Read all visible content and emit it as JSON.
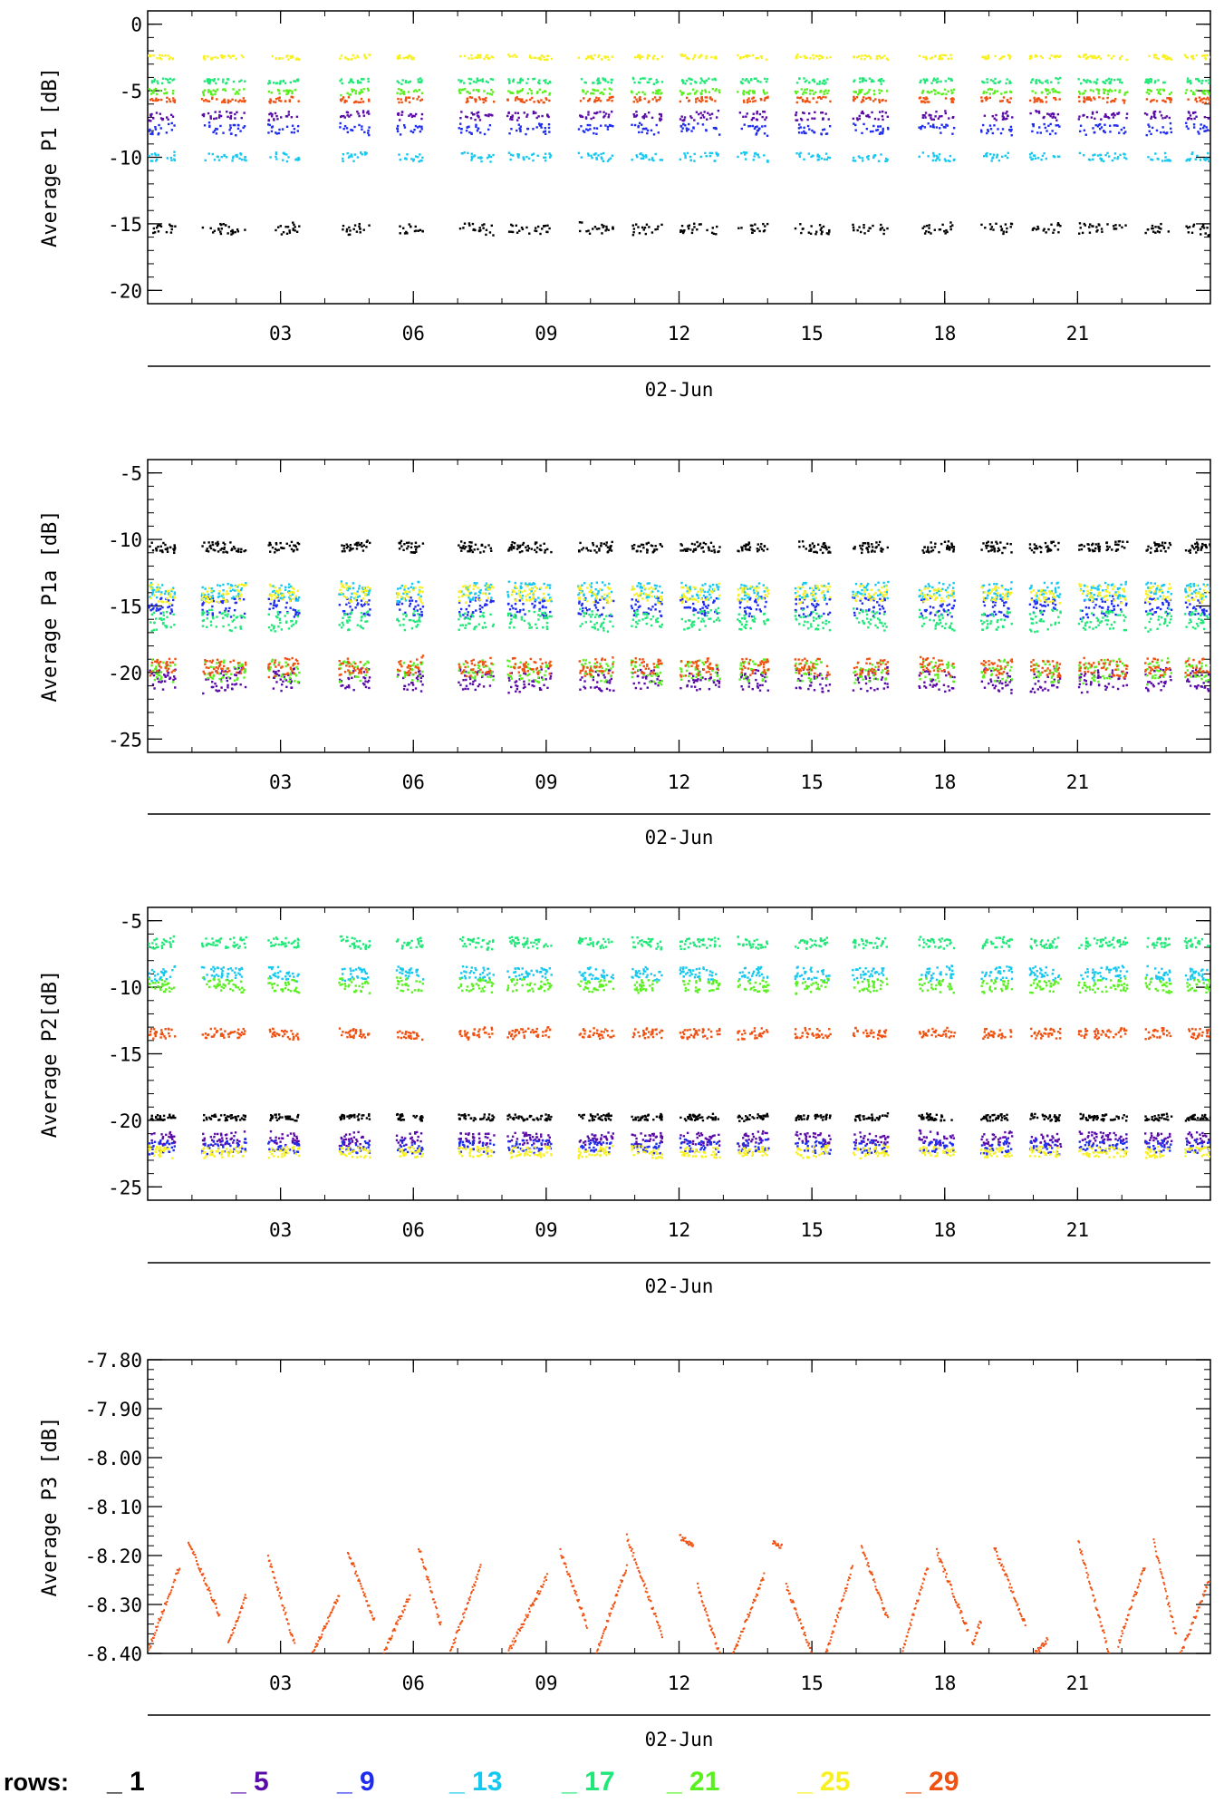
{
  "colors": {
    "row1": "#000000",
    "row5": "#5a0aa8",
    "row9": "#1e2cf0",
    "row13": "#14c8f0",
    "row17": "#20e878",
    "row21": "#5af020",
    "row25": "#f8f020",
    "row29": "#f05010"
  },
  "legend": {
    "prefix": "rows:",
    "items": [
      {
        "label": "_ 1",
        "color": "#000000"
      },
      {
        "label": "_ 5",
        "color": "#5a0aa8"
      },
      {
        "label": "_ 9",
        "color": "#1e2cf0"
      },
      {
        "label": "_ 13",
        "color": "#14c8f0"
      },
      {
        "label": "_ 17",
        "color": "#20e878"
      },
      {
        "label": "_ 21",
        "color": "#5af020"
      },
      {
        "label": "_ 25",
        "color": "#f8f020"
      },
      {
        "label": "_ 29",
        "color": "#f05010"
      }
    ]
  },
  "chart_data": [
    {
      "type": "scatter",
      "ylabel": "Average P1 [dB]",
      "xlabel": "02-Jun",
      "xlim": [
        0,
        24
      ],
      "ylim": [
        -21,
        1
      ],
      "xticks": [
        "03",
        "06",
        "09",
        "12",
        "15",
        "18",
        "21"
      ],
      "xtick_values": [
        3,
        6,
        9,
        12,
        15,
        18,
        21
      ],
      "yticks": [
        "0",
        "-5",
        "-10",
        "-15",
        "-20"
      ],
      "ytick_values": [
        0,
        -5,
        -10,
        -15,
        -20
      ],
      "series": [
        {
          "name": "1",
          "color": "#000000",
          "level": -15.3,
          "noise": 0.5
        },
        {
          "name": "5",
          "color": "#5a0aa8",
          "level": -6.8,
          "noise": 0.4
        },
        {
          "name": "9",
          "color": "#1e2cf0",
          "level": -7.8,
          "noise": 0.5
        },
        {
          "name": "13",
          "color": "#14c8f0",
          "level": -9.9,
          "noise": 0.4
        },
        {
          "name": "17",
          "color": "#20e878",
          "level": -4.2,
          "noise": 0.25
        },
        {
          "name": "21",
          "color": "#5af020",
          "level": -5.0,
          "noise": 0.25
        },
        {
          "name": "25",
          "color": "#f8f020",
          "level": -2.4,
          "noise": 0.2
        },
        {
          "name": "29",
          "color": "#f05010",
          "level": -5.6,
          "noise": 0.25
        }
      ]
    },
    {
      "type": "scatter",
      "ylabel": "Average P1a [dB]",
      "xlabel": "02-Jun",
      "xlim": [
        0,
        24
      ],
      "ylim": [
        -26,
        -4
      ],
      "xticks": [
        "03",
        "06",
        "09",
        "12",
        "15",
        "18",
        "21"
      ],
      "xtick_values": [
        3,
        6,
        9,
        12,
        15,
        18,
        21
      ],
      "yticks": [
        "-5",
        "-10",
        "-15",
        "-20",
        "-25"
      ],
      "ytick_values": [
        -5,
        -10,
        -15,
        -20,
        -25
      ],
      "series": [
        {
          "name": "1",
          "color": "#000000",
          "level": -10.5,
          "noise": 0.5
        },
        {
          "name": "5",
          "color": "#5a0aa8",
          "level": -20.5,
          "noise": 1.0
        },
        {
          "name": "9",
          "color": "#1e2cf0",
          "level": -15.0,
          "noise": 0.9
        },
        {
          "name": "13",
          "color": "#14c8f0",
          "level": -13.8,
          "noise": 0.8
        },
        {
          "name": "17",
          "color": "#20e878",
          "level": -16.0,
          "noise": 0.9
        },
        {
          "name": "21",
          "color": "#5af020",
          "level": -19.8,
          "noise": 1.0
        },
        {
          "name": "25",
          "color": "#f8f020",
          "level": -14.0,
          "noise": 0.8
        },
        {
          "name": "29",
          "color": "#f05010",
          "level": -19.5,
          "noise": 0.8
        }
      ]
    },
    {
      "type": "scatter",
      "ylabel": "Average P2[dB]",
      "xlabel": "02-Jun",
      "xlim": [
        0,
        24
      ],
      "ylim": [
        -26,
        -4
      ],
      "xticks": [
        "03",
        "06",
        "09",
        "12",
        "15",
        "18",
        "21"
      ],
      "xtick_values": [
        3,
        6,
        9,
        12,
        15,
        18,
        21
      ],
      "yticks": [
        "-5",
        "-10",
        "-15",
        "-20",
        "-25"
      ],
      "ytick_values": [
        -5,
        -10,
        -15,
        -20,
        -25
      ],
      "series": [
        {
          "name": "1",
          "color": "#000000",
          "level": -19.7,
          "noise": 0.3
        },
        {
          "name": "5",
          "color": "#5a0aa8",
          "level": -21.3,
          "noise": 0.6
        },
        {
          "name": "9",
          "color": "#1e2cf0",
          "level": -21.9,
          "noise": 0.6
        },
        {
          "name": "13",
          "color": "#14c8f0",
          "level": -8.9,
          "noise": 0.6
        },
        {
          "name": "17",
          "color": "#20e878",
          "level": -6.6,
          "noise": 0.5
        },
        {
          "name": "21",
          "color": "#5af020",
          "level": -9.8,
          "noise": 0.6
        },
        {
          "name": "25",
          "color": "#f8f020",
          "level": -22.3,
          "noise": 0.5
        },
        {
          "name": "29",
          "color": "#f05010",
          "level": -13.4,
          "noise": 0.5
        }
      ]
    },
    {
      "type": "scatter",
      "ylabel": "Average P3 [dB]",
      "xlabel": "02-Jun",
      "xlim": [
        0,
        24
      ],
      "ylim": [
        -8.4,
        -7.8
      ],
      "xticks": [
        "03",
        "06",
        "09",
        "12",
        "15",
        "18",
        "21"
      ],
      "xtick_values": [
        3,
        6,
        9,
        12,
        15,
        18,
        21
      ],
      "yticks": [
        "-7.80",
        "-7.90",
        "-8.00",
        "-8.10",
        "-8.20",
        "-8.30",
        "-8.40"
      ],
      "ytick_values": [
        -7.8,
        -7.9,
        -8.0,
        -8.1,
        -8.2,
        -8.3,
        -8.4
      ],
      "series": [
        {
          "name": "29",
          "color": "#f05010",
          "level": -8.3,
          "noise": 0.0
        }
      ]
    }
  ]
}
